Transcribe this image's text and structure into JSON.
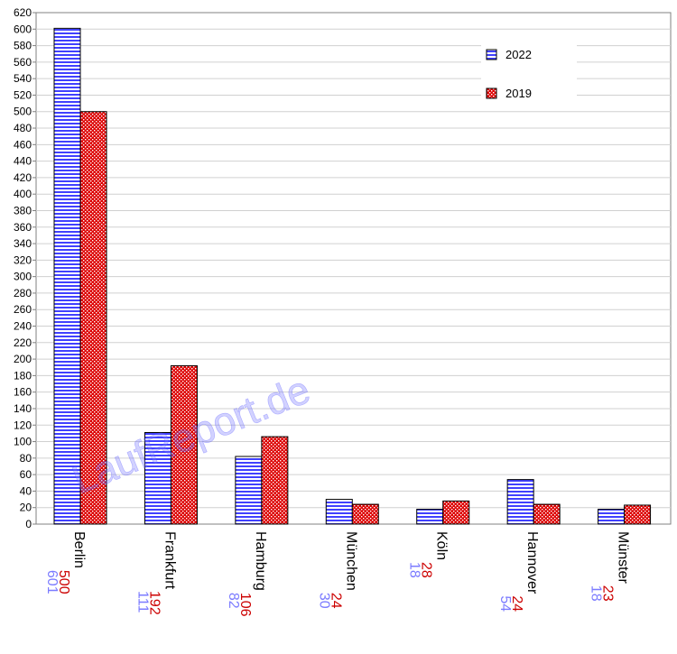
{
  "watermark": "LaufReport.de",
  "chart_data": {
    "type": "bar",
    "categories": [
      "Berlin",
      "Frankfurt",
      "Hamburg",
      "München",
      "Köln",
      "Hannover",
      "Münster"
    ],
    "series": [
      {
        "name": "2022",
        "values": [
          601,
          111,
          82,
          30,
          18,
          54,
          18
        ],
        "color": "#4040ff",
        "label_color": "#7b7bff",
        "pattern": "horizontal-stripes"
      },
      {
        "name": "2019",
        "values": [
          500,
          192,
          106,
          24,
          28,
          24,
          23
        ],
        "color": "#dd0000",
        "label_color": "#cc0000",
        "pattern": "checker-dots"
      }
    ],
    "title": "",
    "xlabel": "",
    "ylabel": "",
    "ylim": [
      0,
      620
    ],
    "ytick_step": 20,
    "grid": true,
    "legend_position": "top-right"
  }
}
